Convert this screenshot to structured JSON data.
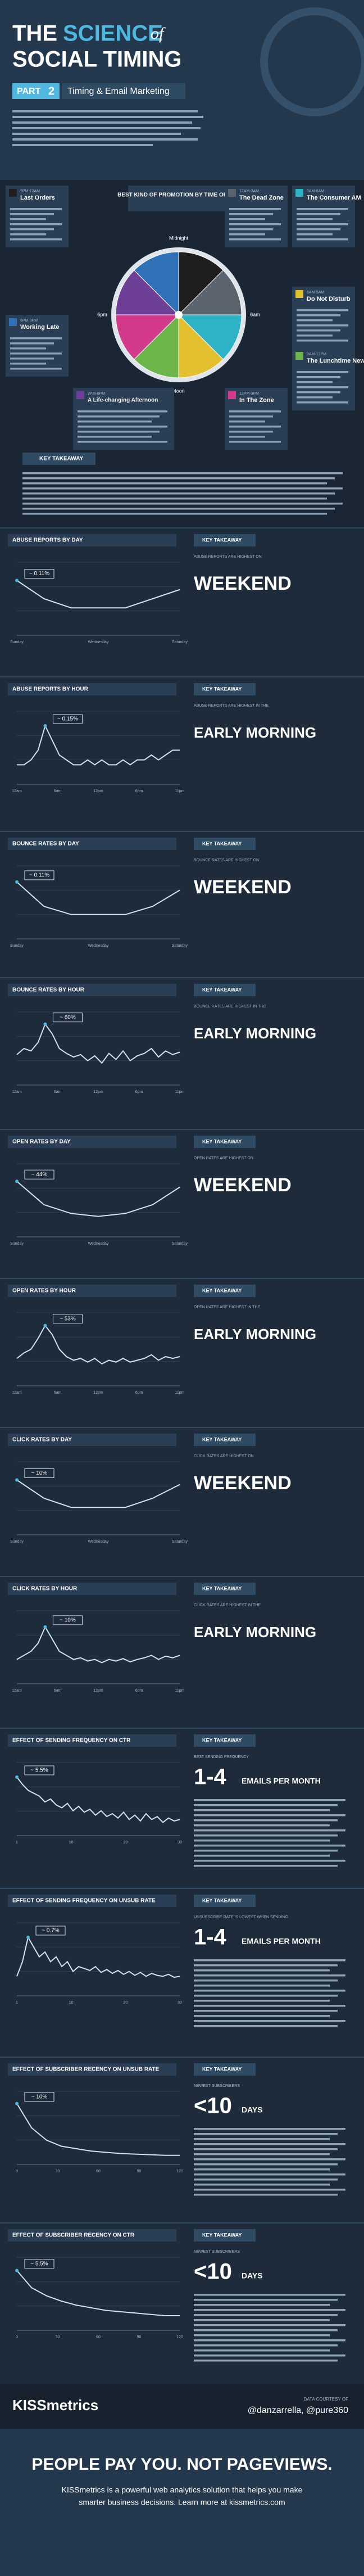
{
  "header": {
    "title_a": "THE",
    "title_b": "SCIENCE",
    "title_c": "of",
    "title_d": "SOCIAL TIMING",
    "part_label": "PART",
    "part_number": "2",
    "part_title": "Timing & Email Marketing"
  },
  "promotion": {
    "title": "BEST KIND OF PROMOTION BY TIME OF DAY",
    "clock": [
      "Midnight",
      "6am",
      "Noon",
      "6pm"
    ],
    "slices": [
      {
        "value": 3,
        "color": "#1e1e1e"
      },
      {
        "value": 3,
        "color": "#5b636c"
      },
      {
        "value": 3,
        "color": "#2cb4c6"
      },
      {
        "value": 3,
        "color": "#e3c12e"
      },
      {
        "value": 3,
        "color": "#6cb548"
      },
      {
        "value": 3,
        "color": "#d43a8c"
      },
      {
        "value": 3,
        "color": "#6d3f97"
      },
      {
        "value": 3,
        "color": "#2f72b8"
      }
    ],
    "tiles": [
      {
        "time": "9PM-12AM",
        "name": "Last Orders"
      },
      {
        "time": "12AM-3AM",
        "name": "The Dead Zone"
      },
      {
        "time": "3AM-6AM",
        "name": "The Consumer AM"
      },
      {
        "time": "6AM-9AM",
        "name": "Do Not Disturb"
      },
      {
        "time": "9AM-12PM",
        "name": "The Lunchtime News"
      },
      {
        "time": "12PM-3PM",
        "name": "In The Zone"
      },
      {
        "time": "3PM-6PM",
        "name": "A Life-changing Afternoon"
      },
      {
        "time": "6PM-9PM",
        "name": "Working Late"
      }
    ],
    "takeaway": "KEY TAKEAWAY"
  },
  "sections": [
    {
      "title": "ABUSE REPORTS BY DAY",
      "annotation": "~ 0.11%",
      "takeaway": "KEY TAKEAWAY",
      "note": "ABUSE REPORTS ARE HIGHEST ON",
      "headline": "WEEKEND",
      "xlabels": [
        "Sunday",
        "Wednesday",
        "Saturday"
      ],
      "values": [
        0.11,
        0.09,
        0.08,
        0.08,
        0.08,
        0.09,
        0.1
      ],
      "ylim": [
        0.05,
        0.13
      ]
    },
    {
      "title": "ABUSE REPORTS BY HOUR",
      "annotation": "~ 0.15%",
      "takeaway": "KEY TAKEAWAY",
      "note": "ABUSE REPORTS ARE HIGHEST IN THE",
      "headline": "EARLY MORNING",
      "xlabels": [
        "12am",
        "6am",
        "12pm",
        "6pm",
        "11pm"
      ],
      "values": [
        0.07,
        0.07,
        0.08,
        0.1,
        0.15,
        0.12,
        0.09,
        0.08,
        0.07,
        0.07,
        0.08,
        0.07,
        0.08,
        0.07,
        0.07,
        0.08,
        0.07,
        0.08,
        0.08,
        0.09,
        0.08,
        0.09,
        0.1,
        0.1
      ],
      "ylim": [
        0.03,
        0.18
      ]
    },
    {
      "title": "BOUNCE RATES BY DAY",
      "annotation": "~ 0.11%",
      "takeaway": "KEY TAKEAWAY",
      "note": "BOUNCE RATES ARE HIGHEST ON",
      "headline": "WEEKEND",
      "xlabels": [
        "Sunday",
        "Wednesday",
        "Saturday"
      ],
      "values": [
        0.11,
        0.08,
        0.07,
        0.07,
        0.07,
        0.08,
        0.1
      ],
      "ylim": [
        0.04,
        0.13
      ]
    },
    {
      "title": "BOUNCE RATES BY HOUR",
      "annotation": "~ 60%",
      "takeaway": "KEY TAKEAWAY",
      "note": "BOUNCE RATES ARE HIGHEST IN THE",
      "headline": "EARLY MORNING",
      "xlabels": [
        "12am",
        "6am",
        "12pm",
        "6pm",
        "11pm"
      ],
      "values": [
        35,
        40,
        38,
        45,
        60,
        52,
        40,
        36,
        33,
        35,
        30,
        34,
        28,
        36,
        31,
        38,
        30,
        34,
        36,
        40,
        33,
        38,
        35,
        37
      ],
      "ylim": [
        10,
        70
      ]
    },
    {
      "title": "OPEN RATES BY DAY",
      "annotation": "~ 44%",
      "takeaway": "KEY TAKEAWAY",
      "note": "OPEN RATES ARE HIGHEST ON",
      "headline": "WEEKEND",
      "xlabels": [
        "Sunday",
        "Wednesday",
        "Saturday"
      ],
      "values": [
        44,
        36,
        33,
        32,
        33,
        36,
        42
      ],
      "ylim": [
        25,
        50
      ]
    },
    {
      "title": "OPEN RATES BY HOUR",
      "annotation": "~ 53%",
      "takeaway": "KEY TAKEAWAY",
      "note": "OPEN RATES ARE HIGHEST IN THE",
      "headline": "EARLY MORNING",
      "xlabels": [
        "12am",
        "6am",
        "12pm",
        "6pm",
        "11pm"
      ],
      "values": [
        35,
        38,
        40,
        46,
        53,
        48,
        40,
        36,
        34,
        35,
        33,
        35,
        32,
        34,
        33,
        35,
        33,
        34,
        35,
        37,
        34,
        36,
        35,
        36
      ],
      "ylim": [
        20,
        60
      ]
    },
    {
      "title": "CLICK RATES BY DAY",
      "annotation": "~ 10%",
      "takeaway": "KEY TAKEAWAY",
      "note": "CLICK RATES ARE HIGHEST ON",
      "headline": "WEEKEND",
      "xlabels": [
        "Sunday",
        "Wednesday",
        "Saturday"
      ],
      "values": [
        10,
        8,
        7,
        7,
        7,
        8,
        9.5
      ],
      "ylim": [
        4,
        12
      ]
    },
    {
      "title": "CLICK RATES BY HOUR",
      "annotation": "~ 10%",
      "takeaway": "KEY TAKEAWAY",
      "note": "CLICK RATES ARE HIGHEST IN THE",
      "headline": "EARLY MORNING",
      "xlabels": [
        "12am",
        "6am",
        "12pm",
        "6pm",
        "11pm"
      ],
      "values": [
        6,
        6.5,
        7,
        8,
        10,
        8.5,
        7,
        6.5,
        6,
        6.2,
        5.8,
        6,
        5.6,
        6,
        5.8,
        6.1,
        5.7,
        6,
        6.2,
        6.5,
        6,
        6.4,
        6.2,
        6.5
      ],
      "ylim": [
        3,
        12
      ]
    },
    {
      "title": "EFFECT OF SENDING FREQUENCY ON CTR",
      "annotation": "~ 5.5%",
      "takeaway": "KEY TAKEAWAY",
      "note": "BEST SENDING FREQUENCY",
      "headline": "1-4",
      "headline_sub": "EMAILS PER MONTH",
      "xlabels": [
        "1",
        "10",
        "20",
        "30"
      ],
      "values": [
        5.5,
        5,
        4.6,
        4.4,
        4.2,
        3.8,
        4,
        3.6,
        3.4,
        3.7,
        3.2,
        3.5,
        3.1,
        3.3,
        2.9,
        3.2,
        2.8,
        3,
        2.7,
        3.1,
        2.6,
        2.9,
        2.5,
        3,
        2.6,
        2.8,
        2.4,
        2.7,
        2.5,
        2.6
      ],
      "ylim": [
        1.5,
        6.5
      ]
    },
    {
      "title": "EFFECT OF SENDING FREQUENCY ON UNSUB RATE",
      "annotation": "~ 0.7%",
      "takeaway": "KEY TAKEAWAY",
      "note": "UNSUBSCRIBE RATE IS LOWEST WHEN SENDING",
      "headline": "1-4",
      "headline_sub": "EMAILS PER MONTH",
      "xlabels": [
        "1",
        "10",
        "20",
        "30"
      ],
      "values": [
        0.3,
        0.45,
        0.7,
        0.6,
        0.5,
        0.55,
        0.45,
        0.5,
        0.4,
        0.45,
        0.35,
        0.4,
        0.38,
        0.36,
        0.4,
        0.34,
        0.37,
        0.33,
        0.36,
        0.32,
        0.35,
        0.31,
        0.34,
        0.3,
        0.33,
        0.31,
        0.3,
        0.32,
        0.29,
        0.3
      ],
      "ylim": [
        0.1,
        0.85
      ]
    },
    {
      "title": "EFFECT OF SUBSCRIBER RECENCY ON UNSUB RATE",
      "annotation": "~ 10%",
      "takeaway": "KEY TAKEAWAY",
      "note": "NEWEST SUBSCRIBERS",
      "headline": "<10",
      "headline_sub": "DAYS",
      "xlabels": [
        "0",
        "30",
        "60",
        "90",
        "120"
      ],
      "values": [
        10,
        6,
        4,
        3,
        2.6,
        2.2,
        2,
        1.8,
        1.7,
        1.6,
        1.5,
        1.5
      ],
      "ylim": [
        0,
        12
      ]
    },
    {
      "title": "EFFECT OF SUBSCRIBER RECENCY ON CTR",
      "annotation": "~ 5.5%",
      "takeaway": "KEY TAKEAWAY",
      "note": "NEWEST SUBSCRIBERS",
      "headline": "<10",
      "headline_sub": "DAYS",
      "xlabels": [
        "0",
        "30",
        "60",
        "90",
        "120"
      ],
      "values": [
        5.5,
        4.2,
        3.6,
        3.2,
        2.9,
        2.7,
        2.5,
        2.4,
        2.3,
        2.2,
        2.1,
        2.1
      ],
      "ylim": [
        1,
        6.5
      ]
    }
  ],
  "footer": {
    "brand": "KISSmetrics",
    "courtesy": "DATA COURTESY OF",
    "handles": "@danzarrella, @pure360",
    "slogan": "PEOPLE PAY YOU. NOT PAGEVIEWS.",
    "blurb_1": "KISSmetrics is a powerful web analytics solution that helps you make",
    "blurb_2": "smarter business decisions. Learn more at kissmetrics.com"
  }
}
